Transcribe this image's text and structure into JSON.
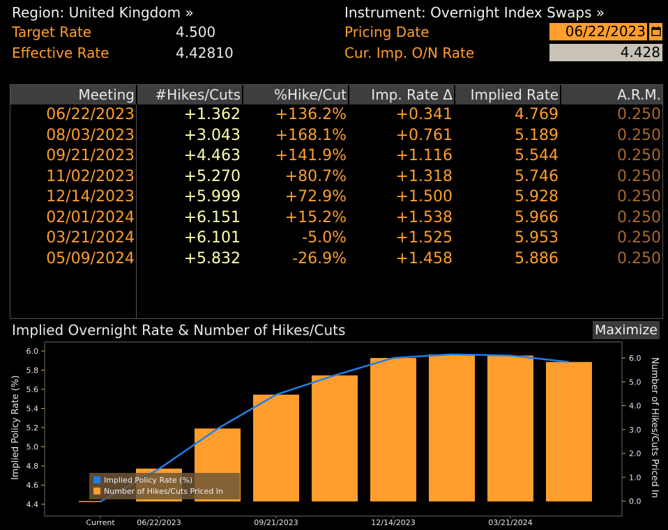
{
  "header": {
    "region_label": "Region: United Kingdom »",
    "instrument_label": "Instrument: Overnight Index Swaps »",
    "target_rate_label": "Target Rate",
    "target_rate_value": "4.500",
    "effective_rate_label": "Effective Rate",
    "effective_rate_value": "4.42810",
    "pricing_date_label": "Pricing Date",
    "pricing_date_value": "06/22/2023",
    "cur_imp_label": "Cur. Imp. O/N Rate",
    "cur_imp_value": "4.428"
  },
  "table": {
    "columns": [
      "Meeting",
      "#Hikes/Cuts",
      "%Hike/Cut",
      "Imp. Rate Δ",
      "Implied Rate",
      "A.R.M."
    ],
    "rows": [
      {
        "meeting": "06/22/2023",
        "hikes": "+1.362",
        "pct": "+136.2%",
        "delta": "+0.341",
        "implied": "4.769",
        "arm": "0.250"
      },
      {
        "meeting": "08/03/2023",
        "hikes": "+3.043",
        "pct": "+168.1%",
        "delta": "+0.761",
        "implied": "5.189",
        "arm": "0.250"
      },
      {
        "meeting": "09/21/2023",
        "hikes": "+4.463",
        "pct": "+141.9%",
        "delta": "+1.116",
        "implied": "5.544",
        "arm": "0.250"
      },
      {
        "meeting": "11/02/2023",
        "hikes": "+5.270",
        "pct": "+80.7%",
        "delta": "+1.318",
        "implied": "5.746",
        "arm": "0.250"
      },
      {
        "meeting": "12/14/2023",
        "hikes": "+5.999",
        "pct": "+72.9%",
        "delta": "+1.500",
        "implied": "5.928",
        "arm": "0.250"
      },
      {
        "meeting": "02/01/2024",
        "hikes": "+6.151",
        "pct": "+15.2%",
        "delta": "+1.538",
        "implied": "5.966",
        "arm": "0.250"
      },
      {
        "meeting": "03/21/2024",
        "hikes": "+6.101",
        "pct": "-5.0%",
        "delta": "+1.525",
        "implied": "5.953",
        "arm": "0.250"
      },
      {
        "meeting": "05/09/2024",
        "hikes": "+5.832",
        "pct": "-26.9%",
        "delta": "+1.458",
        "implied": "5.886",
        "arm": "0.250"
      }
    ]
  },
  "chart_panel": {
    "title": "Implied Overnight Rate & Number of Hikes/Cuts",
    "maximize_label": "Maximize"
  },
  "colors": {
    "accent_orange": "#ff9e2c",
    "line_blue": "#1f7fe8",
    "arm_brown": "#a8682a",
    "header_gray": "#3e3e3e"
  },
  "chart_data": {
    "type": "bar+line",
    "x_categories": [
      "Current",
      "06/22/2023",
      "08/03/2023",
      "09/21/2023",
      "11/02/2023",
      "12/14/2023",
      "02/01/2024",
      "03/21/2024",
      "05/09/2024"
    ],
    "x_tick_labels": [
      "Current",
      "06/22/2023",
      "09/21/2023",
      "12/14/2023",
      "03/21/2024"
    ],
    "ylabel_left": "Implied Policy Rate (%)",
    "ylabel_right": "Number of Hikes/Cuts Priced In",
    "ylim_left": [
      4.4,
      6.0
    ],
    "yticks_left": [
      "4.4",
      "4.6",
      "4.8",
      "5.0",
      "5.2",
      "5.4",
      "5.6",
      "5.8",
      "6.0"
    ],
    "ylim_right": [
      0.0,
      6.0
    ],
    "yticks_right": [
      "0.0",
      "1.0",
      "2.0",
      "3.0",
      "4.0",
      "5.0",
      "6.0"
    ],
    "series": [
      {
        "name": "Implied Policy Rate (%)",
        "type": "line",
        "axis": "left",
        "values": [
          4.428,
          4.769,
          5.189,
          5.544,
          5.746,
          5.928,
          5.966,
          5.953,
          5.886
        ]
      },
      {
        "name": "Number of Hikes/Cuts Priced In",
        "type": "bar",
        "axis": "right",
        "values": [
          0.0,
          1.362,
          3.043,
          4.463,
          5.27,
          5.999,
          6.151,
          6.101,
          5.832
        ]
      }
    ],
    "legend_position": "bottom-left"
  }
}
